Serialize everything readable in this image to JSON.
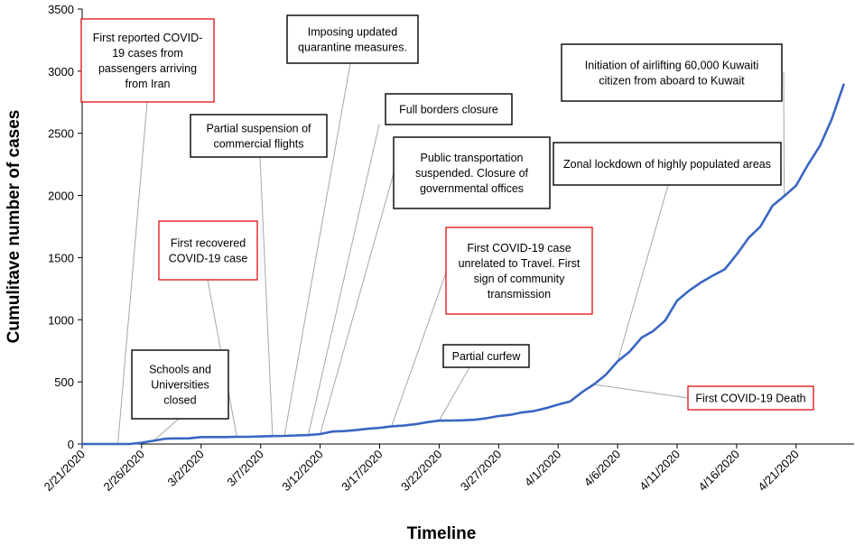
{
  "chart_data": {
    "type": "line",
    "xlabel": "Timeline",
    "ylabel": "Cumulitave number of cases",
    "ylim": [
      0,
      3500
    ],
    "yticks": [
      0,
      500,
      1000,
      1500,
      2000,
      2500,
      3000,
      3500
    ],
    "xticks": [
      "2/21/2020",
      "2/26/2020",
      "3/2/2020",
      "3/7/2020",
      "3/12/2020",
      "3/17/2020",
      "3/22/2020",
      "3/27/2020",
      "4/1/2020",
      "4/6/2020",
      "4/11/2020",
      "4/16/2020",
      "4/21/2020"
    ],
    "grid": false,
    "line_color": "#3a66c2",
    "series": [
      {
        "x": [
          "2/21/2020",
          "2/22/2020",
          "2/23/2020",
          "2/24/2020",
          "2/25/2020",
          "2/26/2020",
          "2/27/2020",
          "2/28/2020",
          "2/29/2020",
          "3/1/2020",
          "3/2/2020",
          "3/3/2020",
          "3/4/2020",
          "3/5/2020",
          "3/6/2020",
          "3/7/2020",
          "3/8/2020",
          "3/9/2020",
          "3/10/2020",
          "3/11/2020",
          "3/12/2020",
          "3/13/2020",
          "3/14/2020",
          "3/15/2020",
          "3/16/2020",
          "3/17/2020",
          "3/18/2020",
          "3/19/2020",
          "3/20/2020",
          "3/21/2020",
          "3/22/2020",
          "3/23/2020",
          "3/24/2020",
          "3/25/2020",
          "3/26/2020",
          "3/27/2020",
          "3/28/2020",
          "3/29/2020",
          "3/30/2020",
          "3/31/2020",
          "4/1/2020",
          "4/2/2020",
          "4/3/2020",
          "4/4/2020",
          "4/5/2020",
          "4/6/2020",
          "4/7/2020",
          "4/8/2020",
          "4/9/2020",
          "4/10/2020",
          "4/11/2020",
          "4/12/2020",
          "4/13/2020",
          "4/14/2020",
          "4/15/2020",
          "4/16/2020",
          "4/17/2020",
          "4/18/2020",
          "4/19/2020",
          "4/20/2020",
          "4/21/2020",
          "4/22/2020",
          "4/23/2020",
          "4/24/2020",
          "4/25/2020"
        ],
        "y": [
          0,
          0,
          0,
          0,
          0,
          11,
          26,
          43,
          45,
          46,
          56,
          56,
          56,
          58,
          58,
          61,
          64,
          65,
          69,
          72,
          80,
          100,
          104,
          112,
          123,
          130,
          142,
          148,
          159,
          176,
          188,
          189,
          191,
          195,
          208,
          225,
          235,
          255,
          266,
          289,
          317,
          342,
          417,
          479,
          556,
          665,
          743,
          855,
          910,
          993,
          1154,
          1234,
          1300,
          1355,
          1405,
          1524,
          1658,
          1751,
          1915,
          1995,
          2080,
          2248,
          2399,
          2614,
          2892
        ]
      }
    ],
    "annotations": [
      {
        "text_lines": [
          "First reported COVID-",
          "19 cases from",
          "passengers arriving",
          "from Iran"
        ],
        "border_color": "#e02020",
        "target_date": "2/24/2020"
      },
      {
        "text_lines": [
          "Schools and",
          "Universities",
          "closed"
        ],
        "border_color": "#000000",
        "target_date": "2/27/2020"
      },
      {
        "text_lines": [
          "First recovered",
          "COVID-19 case"
        ],
        "border_color": "#e02020",
        "target_date": "3/5/2020"
      },
      {
        "text_lines": [
          "Partial suspension of",
          "commercial flights"
        ],
        "border_color": "#000000",
        "target_date": "3/8/2020"
      },
      {
        "text_lines": [
          "Imposing updated",
          "quarantine measures."
        ],
        "border_color": "#000000",
        "target_date": "3/9/2020"
      },
      {
        "text_lines": [
          "Full borders closure"
        ],
        "border_color": "#000000",
        "target_date": "3/11/2020"
      },
      {
        "text_lines": [
          "Public transportation",
          "suspended. Closure of",
          "governmental offices"
        ],
        "border_color": "#000000",
        "target_date": "3/12/2020"
      },
      {
        "text_lines": [
          "First COVID-19 case",
          "unrelated to Travel. First",
          "sign of community",
          "transmission"
        ],
        "border_color": "#e02020",
        "target_date": "3/18/2020"
      },
      {
        "text_lines": [
          "Partial curfew"
        ],
        "border_color": "#000000",
        "target_date": "3/22/2020"
      },
      {
        "text_lines": [
          "Zonal lockdown of highly populated areas"
        ],
        "border_color": "#000000",
        "target_date": "4/6/2020"
      },
      {
        "text_lines": [
          "Initiation  of airlifting 60,000 Kuwaiti",
          "citizen from aboard to Kuwait"
        ],
        "border_color": "#000000",
        "target_date": "4/20/2020"
      },
      {
        "text_lines": [
          "First COVID-19 Death"
        ],
        "border_color": "#e02020",
        "target_date": "4/4/2020"
      }
    ]
  }
}
